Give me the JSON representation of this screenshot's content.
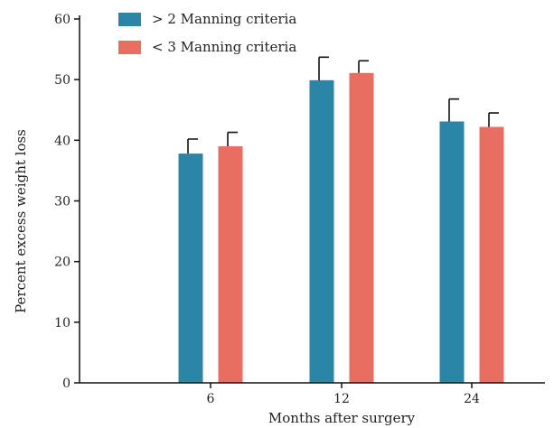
{
  "chart_data": {
    "type": "bar",
    "categories": [
      "6",
      "12",
      "24"
    ],
    "series": [
      {
        "name": "> 2 Manning criteria",
        "color": "#2b85a5",
        "values": [
          37.8,
          49.9,
          43.1
        ],
        "error": [
          2.4,
          3.8,
          3.7
        ]
      },
      {
        "name": "< 3 Manning criteria",
        "color": "#e86e62",
        "values": [
          39.0,
          51.1,
          42.2
        ],
        "error": [
          2.3,
          2.0,
          2.3
        ]
      }
    ],
    "xlabel": "Months after surgery",
    "ylabel": "Percent excess weight loss",
    "ylim": [
      0,
      60
    ],
    "yticks": [
      "0",
      "10",
      "20",
      "30",
      "40",
      "50",
      "60"
    ],
    "grid": false,
    "legend_position": "top-left"
  }
}
